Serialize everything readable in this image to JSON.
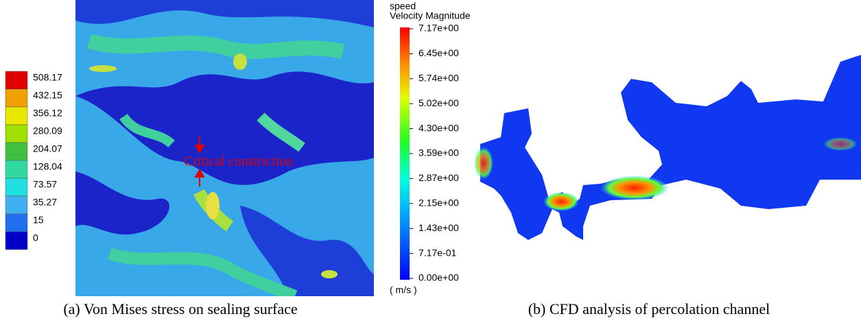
{
  "panel_a": {
    "legend": {
      "labels": [
        "508.17",
        "432.15",
        "356.12",
        "280.09",
        "204.07",
        "128.04",
        "73.57",
        "35.27",
        "15",
        "0"
      ]
    },
    "annotation": "Critical constriction",
    "caption": "(a) Von Mises stress on sealing surface"
  },
  "panel_b": {
    "legend": {
      "title": "speed",
      "subtitle": "Velocity Magnitude",
      "labels": [
        "7.17e+00",
        "6.45e+00",
        "5.74e+00",
        "5.02e+00",
        "4.30e+00",
        "3.59e+00",
        "2.87e+00",
        "2.15e+00",
        "1.43e+00",
        "7.17e-01",
        "0.00e+00"
      ],
      "unit": "( m/s )"
    },
    "caption": "(b) CFD analysis of percolation channel"
  }
}
